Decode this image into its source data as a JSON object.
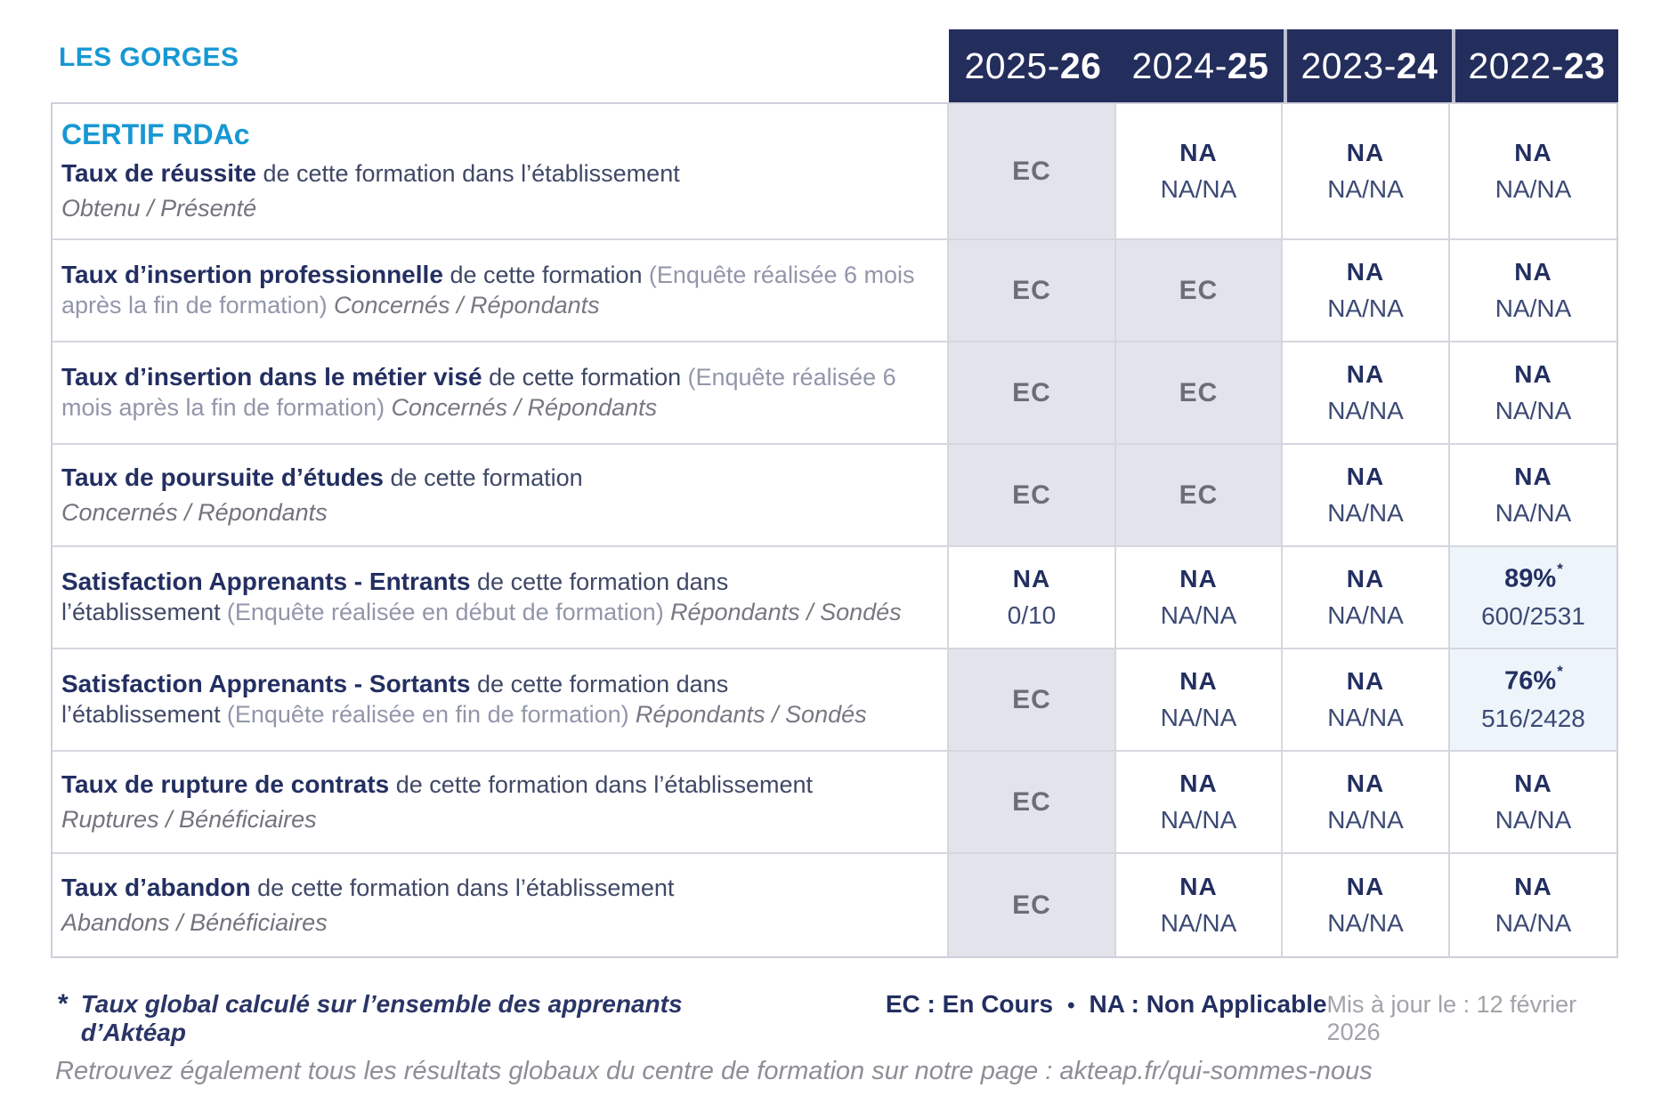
{
  "page": {
    "site_label": "LES GORGES",
    "footnote_star": "*",
    "footnote_text": "Taux global calculé sur l’ensemble des apprenants d’Aktéap",
    "legend_ec": "EC : En Cours",
    "legend_bullet": "•",
    "legend_na": "NA : Non Applicable",
    "updated": "Mis à jour le : 12 février 2026",
    "bottom_note": "Retrouvez également tous les résultats globaux du centre de formation sur notre page : akteap.fr/qui-sommes-nous"
  },
  "colors": {
    "header_navy": "#242e5c",
    "accent_blue": "#1798d3",
    "ec_cell_bg": "#e3e3ec",
    "ec_text": "#6d6d77",
    "value_navy": "#232f61",
    "highlight_cell_bg": "#edf5fb",
    "border_gray": "#d6d6e0"
  },
  "table": {
    "year_columns": [
      {
        "prefix": "2025-",
        "suffix": "26"
      },
      {
        "prefix": "2024-",
        "suffix": "25"
      },
      {
        "prefix": "2023-",
        "suffix": "24"
      },
      {
        "prefix": "2022-",
        "suffix": "23"
      }
    ],
    "rows": [
      {
        "heading": "CERTIF RDAc",
        "title": "Taux de réussite",
        "mid": "de cette formation dans l’établissement",
        "paren": "",
        "tail": "",
        "sub": "Obtenu / Présenté",
        "cells": [
          {
            "t": "ec",
            "m": "EC",
            "s": "",
            "sup": ""
          },
          {
            "t": "na",
            "m": "NA",
            "s": "NA/NA",
            "sup": ""
          },
          {
            "t": "na",
            "m": "NA",
            "s": "NA/NA",
            "sup": ""
          },
          {
            "t": "na",
            "m": "NA",
            "s": "NA/NA",
            "sup": ""
          }
        ]
      },
      {
        "heading": "",
        "title": "Taux d’insertion professionnelle",
        "mid": "de cette formation",
        "paren": "(Enquête réalisée 6 mois après la fin de formation)",
        "tail": "Concernés / Répondants",
        "sub": "",
        "cells": [
          {
            "t": "ec",
            "m": "EC",
            "s": "",
            "sup": ""
          },
          {
            "t": "ec",
            "m": "EC",
            "s": "",
            "sup": ""
          },
          {
            "t": "na",
            "m": "NA",
            "s": "NA/NA",
            "sup": ""
          },
          {
            "t": "na",
            "m": "NA",
            "s": "NA/NA",
            "sup": ""
          }
        ]
      },
      {
        "heading": "",
        "title": "Taux d’insertion dans le métier visé",
        "mid": "de cette formation",
        "paren": "(Enquête réalisée 6 mois après la fin de formation)",
        "tail": "Concernés / Répondants",
        "sub": "",
        "cells": [
          {
            "t": "ec",
            "m": "EC",
            "s": "",
            "sup": ""
          },
          {
            "t": "ec",
            "m": "EC",
            "s": "",
            "sup": ""
          },
          {
            "t": "na",
            "m": "NA",
            "s": "NA/NA",
            "sup": ""
          },
          {
            "t": "na",
            "m": "NA",
            "s": "NA/NA",
            "sup": ""
          }
        ]
      },
      {
        "heading": "",
        "title": "Taux de poursuite d’études",
        "mid": "de cette formation",
        "paren": "",
        "tail": "",
        "sub": "Concernés / Répondants",
        "cells": [
          {
            "t": "ec",
            "m": "EC",
            "s": "",
            "sup": ""
          },
          {
            "t": "ec",
            "m": "EC",
            "s": "",
            "sup": ""
          },
          {
            "t": "na",
            "m": "NA",
            "s": "NA/NA",
            "sup": ""
          },
          {
            "t": "na",
            "m": "NA",
            "s": "NA/NA",
            "sup": ""
          }
        ]
      },
      {
        "heading": "",
        "title": "Satisfaction Apprenants - Entrants",
        "mid": "de cette formation dans l’établissement",
        "paren": "(Enquête réalisée en début de formation)",
        "tail": "Répondants / Sondés",
        "sub": "",
        "cells": [
          {
            "t": "na",
            "m": "NA",
            "s": "0/10",
            "sup": ""
          },
          {
            "t": "na",
            "m": "NA",
            "s": "NA/NA",
            "sup": ""
          },
          {
            "t": "na",
            "m": "NA",
            "s": "NA/NA",
            "sup": ""
          },
          {
            "t": "pct",
            "m": "89%",
            "s": "600/2531",
            "sup": "*"
          }
        ]
      },
      {
        "heading": "",
        "title": "Satisfaction Apprenants - Sortants",
        "mid": "de cette formation dans l’établissement",
        "paren": "(Enquête réalisée en fin de formation)",
        "tail": "Répondants / Sondés",
        "sub": "",
        "cells": [
          {
            "t": "ec",
            "m": "EC",
            "s": "",
            "sup": ""
          },
          {
            "t": "na",
            "m": "NA",
            "s": "NA/NA",
            "sup": ""
          },
          {
            "t": "na",
            "m": "NA",
            "s": "NA/NA",
            "sup": ""
          },
          {
            "t": "pct",
            "m": "76%",
            "s": "516/2428",
            "sup": "*"
          }
        ]
      },
      {
        "heading": "",
        "title": "Taux de rupture de contrats",
        "mid": "de cette formation dans l’établissement",
        "paren": "",
        "tail": "",
        "sub": "Ruptures / Bénéficiaires",
        "cells": [
          {
            "t": "ec",
            "m": "EC",
            "s": "",
            "sup": ""
          },
          {
            "t": "na",
            "m": "NA",
            "s": "NA/NA",
            "sup": ""
          },
          {
            "t": "na",
            "m": "NA",
            "s": "NA/NA",
            "sup": ""
          },
          {
            "t": "na",
            "m": "NA",
            "s": "NA/NA",
            "sup": ""
          }
        ]
      },
      {
        "heading": "",
        "title": "Taux d’abandon",
        "mid": "de cette formation dans l’établissement",
        "paren": "",
        "tail": "",
        "sub": "Abandons / Bénéficiaires",
        "cells": [
          {
            "t": "ec",
            "m": "EC",
            "s": "",
            "sup": ""
          },
          {
            "t": "na",
            "m": "NA",
            "s": "NA/NA",
            "sup": ""
          },
          {
            "t": "na",
            "m": "NA",
            "s": "NA/NA",
            "sup": ""
          },
          {
            "t": "na",
            "m": "NA",
            "s": "NA/NA",
            "sup": ""
          }
        ]
      }
    ]
  }
}
